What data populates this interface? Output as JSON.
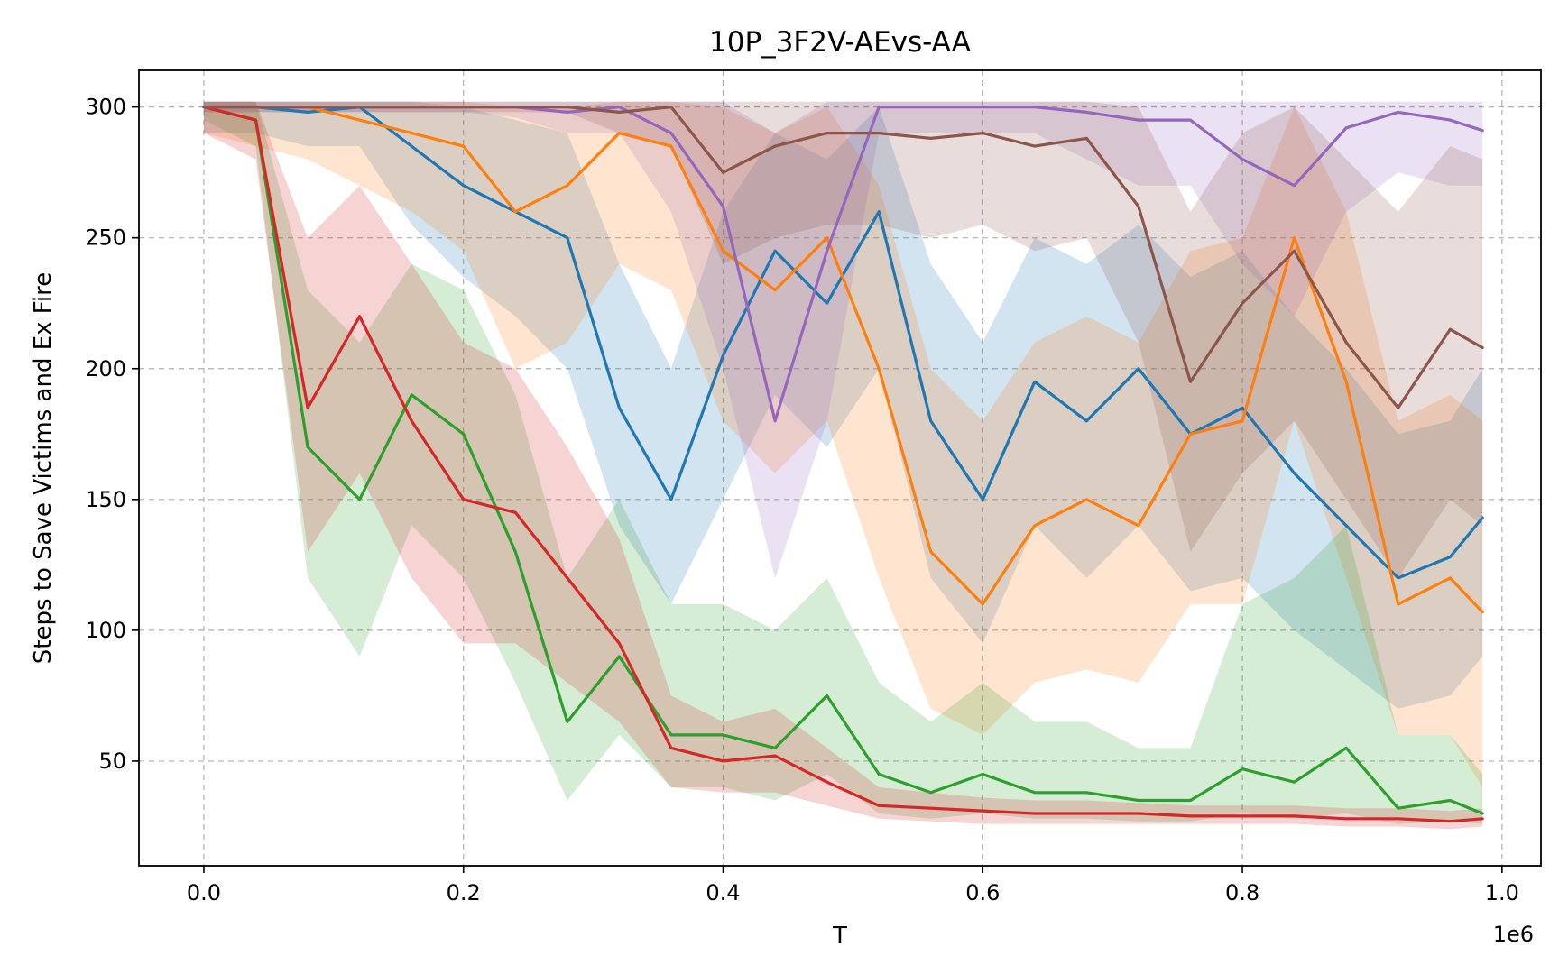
{
  "chart_data": {
    "type": "line",
    "title": "10P_3F2V-AEvs-AA",
    "xlabel": "T",
    "ylabel": "Steps to Save Victims and Ex Fire",
    "x_offset_label": "1e6",
    "xlim": [
      -0.05,
      1.03
    ],
    "ylim": [
      10,
      314
    ],
    "xticks": [
      0.0,
      0.2,
      0.4,
      0.6,
      0.8,
      1.0
    ],
    "xtick_labels": [
      "0.0",
      "0.2",
      "0.4",
      "0.6",
      "0.8",
      "1.0"
    ],
    "yticks": [
      50,
      100,
      150,
      200,
      250,
      300
    ],
    "ytick_labels": [
      "50",
      "100",
      "150",
      "200",
      "250",
      "300"
    ],
    "grid": true,
    "legend": "none",
    "x": [
      0.0,
      0.04,
      0.08,
      0.12,
      0.16,
      0.2,
      0.24,
      0.28,
      0.32,
      0.36,
      0.4,
      0.44,
      0.48,
      0.52,
      0.56,
      0.6,
      0.64,
      0.68,
      0.72,
      0.76,
      0.8,
      0.84,
      0.88,
      0.92,
      0.96,
      0.985
    ],
    "series": [
      {
        "color": "#1f77b4",
        "values": [
          300,
          300,
          298,
          300,
          285,
          270,
          260,
          250,
          185,
          150,
          205,
          245,
          225,
          260,
          180,
          150,
          195,
          180,
          200,
          175,
          185,
          160,
          140,
          120,
          128,
          143
        ],
        "band_low": [
          290,
          290,
          285,
          285,
          255,
          235,
          220,
          200,
          140,
          110,
          150,
          190,
          170,
          200,
          120,
          95,
          140,
          120,
          140,
          115,
          120,
          100,
          85,
          70,
          75,
          90
        ],
        "band_high": [
          302,
          302,
          302,
          302,
          302,
          300,
          295,
          290,
          240,
          200,
          260,
          290,
          280,
          300,
          240,
          210,
          250,
          240,
          255,
          235,
          245,
          220,
          200,
          175,
          180,
          200
        ]
      },
      {
        "color": "#ff7f0e",
        "values": [
          300,
          300,
          300,
          295,
          290,
          285,
          260,
          270,
          290,
          285,
          245,
          230,
          250,
          200,
          130,
          110,
          140,
          150,
          140,
          175,
          180,
          250,
          195,
          110,
          120,
          107
        ],
        "band_low": [
          290,
          285,
          280,
          270,
          260,
          245,
          200,
          210,
          240,
          230,
          180,
          160,
          180,
          120,
          70,
          60,
          80,
          85,
          80,
          110,
          110,
          180,
          120,
          60,
          60,
          40
        ],
        "band_high": [
          302,
          302,
          302,
          302,
          302,
          302,
          300,
          300,
          302,
          302,
          300,
          290,
          300,
          270,
          200,
          180,
          210,
          220,
          210,
          245,
          250,
          300,
          260,
          180,
          190,
          180
        ]
      },
      {
        "color": "#2ca02c",
        "values": [
          300,
          295,
          170,
          150,
          190,
          175,
          130,
          65,
          90,
          60,
          60,
          55,
          75,
          45,
          38,
          45,
          38,
          38,
          35,
          35,
          47,
          42,
          55,
          32,
          35,
          30
        ],
        "band_low": [
          295,
          285,
          120,
          90,
          140,
          120,
          80,
          35,
          60,
          40,
          40,
          35,
          45,
          30,
          28,
          30,
          28,
          28,
          27,
          27,
          30,
          28,
          30,
          26,
          27,
          26
        ],
        "band_high": [
          302,
          302,
          230,
          210,
          240,
          230,
          190,
          120,
          150,
          110,
          110,
          100,
          120,
          80,
          65,
          80,
          65,
          65,
          55,
          55,
          110,
          120,
          140,
          60,
          60,
          45
        ]
      },
      {
        "color": "#d62728",
        "values": [
          300,
          295,
          185,
          220,
          180,
          150,
          145,
          120,
          95,
          55,
          50,
          52,
          42,
          33,
          32,
          31,
          30,
          30,
          30,
          29,
          29,
          29,
          28,
          28,
          27,
          28
        ],
        "band_low": [
          290,
          280,
          130,
          160,
          120,
          95,
          95,
          80,
          65,
          40,
          38,
          38,
          33,
          28,
          27,
          26,
          26,
          26,
          26,
          26,
          26,
          26,
          25,
          25,
          24,
          25
        ],
        "band_high": [
          302,
          302,
          250,
          270,
          240,
          210,
          200,
          170,
          135,
          75,
          65,
          70,
          55,
          40,
          38,
          36,
          35,
          35,
          34,
          33,
          33,
          33,
          32,
          32,
          31,
          32
        ]
      },
      {
        "color": "#9467bd",
        "values": [
          300,
          300,
          300,
          300,
          300,
          300,
          300,
          298,
          300,
          290,
          262,
          180,
          245,
          300,
          300,
          300,
          300,
          298,
          295,
          295,
          280,
          270,
          292,
          298,
          295,
          291
        ],
        "band_low": [
          298,
          298,
          298,
          298,
          298,
          298,
          296,
          290,
          290,
          260,
          200,
          120,
          180,
          290,
          290,
          290,
          290,
          280,
          270,
          270,
          240,
          220,
          260,
          275,
          270,
          270
        ],
        "band_high": [
          302,
          302,
          302,
          302,
          302,
          302,
          302,
          302,
          302,
          302,
          302,
          290,
          302,
          302,
          302,
          302,
          302,
          302,
          302,
          302,
          302,
          302,
          302,
          302,
          302,
          302
        ]
      },
      {
        "color": "#8c564b",
        "values": [
          300,
          300,
          300,
          300,
          300,
          300,
          300,
          300,
          298,
          300,
          275,
          285,
          290,
          290,
          288,
          290,
          285,
          288,
          262,
          195,
          225,
          245,
          210,
          185,
          215,
          208
        ],
        "band_low": [
          298,
          298,
          298,
          298,
          298,
          298,
          298,
          298,
          290,
          285,
          240,
          250,
          255,
          255,
          250,
          255,
          245,
          250,
          210,
          130,
          160,
          180,
          150,
          120,
          150,
          140
        ],
        "band_high": [
          302,
          302,
          302,
          302,
          302,
          302,
          302,
          302,
          302,
          302,
          302,
          302,
          302,
          302,
          302,
          302,
          302,
          302,
          300,
          260,
          290,
          300,
          280,
          260,
          285,
          280
        ]
      }
    ]
  }
}
